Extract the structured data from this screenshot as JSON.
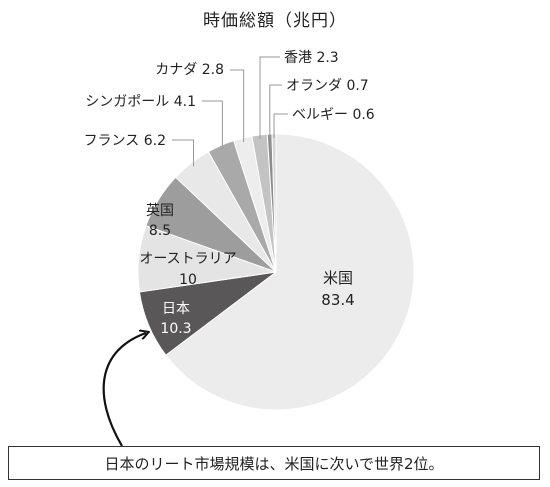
{
  "chart_data": {
    "type": "pie",
    "title": "時価総額（兆円）",
    "slices": [
      {
        "label": "米国",
        "value": "83.4",
        "color": "#ececec",
        "text_color": "#222222"
      },
      {
        "label": "日本",
        "value": "10.3",
        "color": "#595757",
        "text_color": "#ffffff"
      },
      {
        "label": "オーストラリア",
        "value": "10",
        "color": "#e4e4e4",
        "text_color": "#222222"
      },
      {
        "label": "英国",
        "value": "8.5",
        "color": "#9d9d9d",
        "text_color": "#222222"
      },
      {
        "label": "フランス",
        "value": "6.2",
        "color": "#e8e8e8",
        "text_color": "#222222"
      },
      {
        "label": "シンガポール",
        "value": "4.1",
        "color": "#a9a9a9",
        "text_color": "#222222"
      },
      {
        "label": "カナダ",
        "value": "2.8",
        "color": "#ededed",
        "text_color": "#222222"
      },
      {
        "label": "香港",
        "value": "2.3",
        "color": "#c3c3c3",
        "text_color": "#222222"
      },
      {
        "label": "オランダ",
        "value": "0.7",
        "color": "#8d8d8d",
        "text_color": "#222222"
      },
      {
        "label": "ベルギー",
        "value": "0.6",
        "color": "#d6d6d6",
        "text_color": "#222222"
      }
    ],
    "start_angle": "12 o'clock",
    "direction": "clockwise"
  },
  "annotation": {
    "text": "日本のリート市場規模は、米国に次いで世界2位。"
  }
}
